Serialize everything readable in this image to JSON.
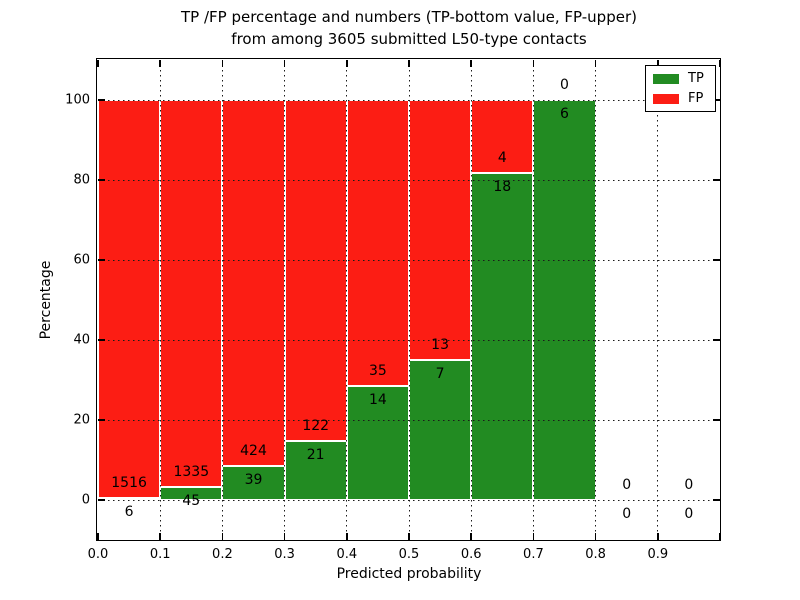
{
  "title": {
    "line1": "TP /FP percentage and numbers (TP-bottom value, FP-upper)",
    "line2": "from among 3605 submitted L50-type contacts"
  },
  "chart_data": {
    "type": "bar",
    "stacked": true,
    "title": "TP /FP percentage and numbers (TP-bottom value, FP-upper) from among 3605 submitted L50-type contacts",
    "xlabel": "Predicted probability",
    "ylabel": "Percentage",
    "xlim": [
      0.0,
      1.0
    ],
    "ylim": [
      -10,
      110
    ],
    "grid": "dotted",
    "bin_start": [
      0.0,
      0.1,
      0.2,
      0.3,
      0.4,
      0.5,
      0.6,
      0.7,
      0.8,
      0.9
    ],
    "bin_width": 0.1,
    "xticks": [
      "0.0",
      "0.1",
      "0.2",
      "0.3",
      "0.4",
      "0.5",
      "0.6",
      "0.7",
      "0.8",
      "0.9"
    ],
    "yticks": [
      0,
      20,
      40,
      60,
      80,
      100
    ],
    "series": [
      {
        "name": "TP",
        "color": "#228b22",
        "counts": [
          6,
          45,
          39,
          21,
          14,
          7,
          18,
          6,
          0,
          0
        ],
        "percent": [
          0.4,
          3.3,
          8.4,
          14.7,
          28.6,
          35.0,
          81.8,
          100.0,
          0,
          0
        ]
      },
      {
        "name": "FP",
        "color": "#fc1d14",
        "counts": [
          1516,
          1335,
          424,
          122,
          35,
          13,
          4,
          0,
          0,
          0
        ],
        "percent": [
          99.6,
          96.7,
          91.6,
          85.3,
          71.4,
          65.0,
          18.2,
          0.0,
          0,
          0
        ]
      }
    ],
    "legend": {
      "position": "upper right",
      "entries": [
        "TP",
        "FP"
      ]
    }
  }
}
